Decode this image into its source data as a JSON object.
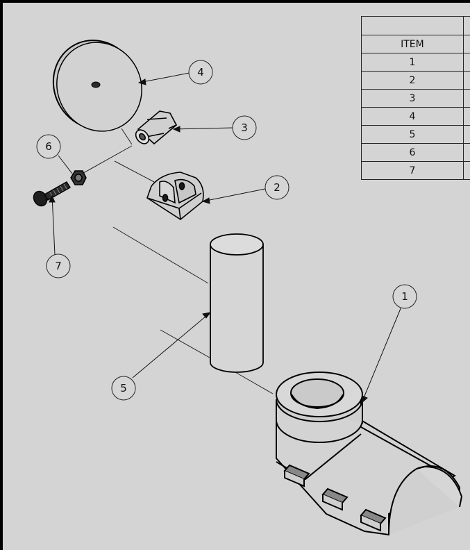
{
  "bom": {
    "header": "ITEM",
    "items": [
      "1",
      "2",
      "3",
      "4",
      "5",
      "6",
      "7"
    ]
  },
  "balloons": [
    "1",
    "2",
    "3",
    "4",
    "5",
    "6",
    "7"
  ]
}
